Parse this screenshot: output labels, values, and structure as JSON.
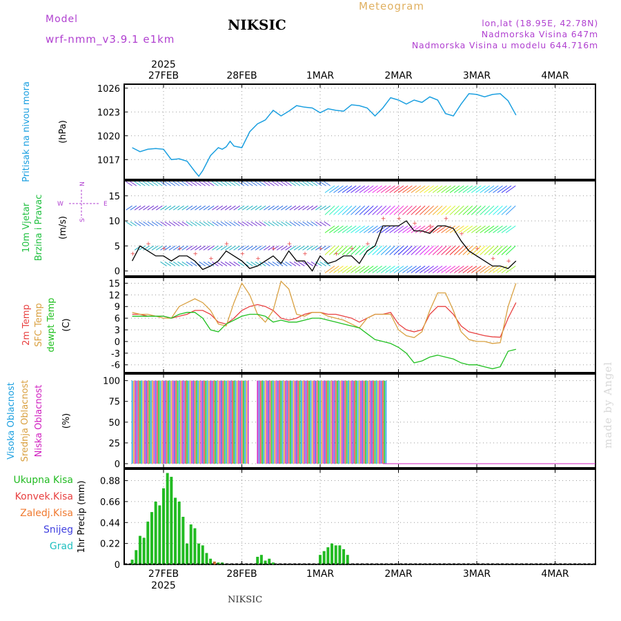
{
  "header": {
    "model_label": "Model",
    "model_name": "wrf-nmm_v3.9.1  e1km",
    "station": "NIKSIC",
    "title": "Meteogram",
    "lonlat": "lon,lat (18.95E, 42.78N)",
    "altitude": "Nadmorska Visina 647m",
    "model_altitude": "Nadmorska Visina u modelu 644.716m"
  },
  "footer": {
    "station": "NIKSIC",
    "credit": "made by Angel"
  },
  "colors": {
    "pressure": "#1a9fe0",
    "temp2m": "#e84040",
    "sfctemp": "#d9a040",
    "dewpt": "#20c020",
    "wind_black": "#000000",
    "precip": "#22bb22",
    "precip_conv": "#e84040",
    "precip_frozen": "#c86a2a",
    "cloud_high": "#1a9fe0",
    "cloud_mid": "#d9a040",
    "cloud_low": "#d020c0",
    "cloud_other": "#5050e0"
  },
  "chart_data": [
    {
      "type": "line",
      "panel": "pressure",
      "ylabel_rotated": "Pritisak na nivou mora",
      "unit": "(hPa)",
      "x_labels_top": [
        "27FEB",
        "28FEB",
        "1MAR",
        "2MAR",
        "3MAR",
        "4MAR"
      ],
      "year_top": "2025",
      "yticks": [
        1017,
        1020,
        1023,
        1026
      ],
      "ylim": [
        1014.5,
        1026.5
      ],
      "series": [
        {
          "x": [
            -0.4,
            -0.3,
            -0.2,
            -0.1,
            0,
            0.1,
            0.2,
            0.3,
            0.4,
            0.45,
            0.5,
            0.6,
            0.7,
            0.75,
            0.8,
            0.85,
            0.9,
            1.0,
            1.1,
            1.2,
            1.3,
            1.4,
            1.5,
            1.6,
            1.7,
            1.8,
            1.9,
            2.0,
            2.1,
            2.2,
            2.3,
            2.4,
            2.5,
            2.6,
            2.7,
            2.8,
            2.9,
            3.0,
            3.1,
            3.2,
            3.3,
            3.4,
            3.5,
            3.6,
            3.7,
            3.8,
            3.9,
            4.0,
            4.1,
            4.2,
            4.3,
            4.4,
            4.5
          ],
          "y": [
            1018.5,
            1018.0,
            1018.3,
            1018.4,
            1018.3,
            1017.0,
            1017.1,
            1016.8,
            1015.5,
            1014.9,
            1015.6,
            1017.5,
            1018.5,
            1018.3,
            1018.6,
            1019.3,
            1018.7,
            1018.5,
            1020.5,
            1021.5,
            1022.0,
            1023.2,
            1022.5,
            1023.1,
            1023.8,
            1023.6,
            1023.5,
            1022.9,
            1023.4,
            1023.2,
            1023.1,
            1023.9,
            1023.8,
            1023.5,
            1022.5,
            1023.5,
            1024.8,
            1024.5,
            1024.0,
            1024.5,
            1024.2,
            1024.9,
            1024.5,
            1022.8,
            1022.5,
            1024.0,
            1025.3,
            1025.2,
            1024.9,
            1025.2,
            1025.3,
            1024.4,
            1022.6
          ]
        }
      ]
    },
    {
      "type": "line",
      "panel": "wind",
      "ylabel_rotated": [
        "10m Vjetar",
        "Brzina i Pravac"
      ],
      "unit": "(m/s)",
      "compass": {
        "n": "N",
        "s": "S",
        "e": "E",
        "w": "W"
      },
      "yticks": [
        0,
        5,
        10,
        15
      ],
      "ylim": [
        -1,
        18
      ],
      "series": [
        {
          "name": "speed",
          "x": [
            -0.4,
            -0.3,
            -0.2,
            -0.1,
            0,
            0.1,
            0.2,
            0.3,
            0.4,
            0.5,
            0.6,
            0.7,
            0.8,
            0.9,
            1.0,
            1.1,
            1.2,
            1.3,
            1.4,
            1.5,
            1.6,
            1.7,
            1.8,
            1.9,
            2.0,
            2.1,
            2.2,
            2.3,
            2.4,
            2.5,
            2.6,
            2.7,
            2.8,
            2.9,
            3.0,
            3.1,
            3.2,
            3.3,
            3.4,
            3.5,
            3.6,
            3.7,
            3.8,
            3.9,
            4.0,
            4.1,
            4.2,
            4.3,
            4.4,
            4.5
          ],
          "y": [
            2,
            5,
            4,
            3,
            3,
            2,
            3,
            3,
            2,
            0.3,
            1,
            2,
            4,
            3,
            2,
            0.5,
            1,
            2,
            3,
            1.5,
            4,
            2,
            2,
            0,
            3,
            1.5,
            2,
            3,
            3,
            1.5,
            4,
            5,
            9,
            9,
            9,
            10,
            8,
            8,
            7.5,
            9,
            9,
            8.5,
            6,
            4,
            3,
            2,
            1,
            1,
            0.5,
            2
          ]
        }
      ]
    },
    {
      "type": "line",
      "panel": "temperature",
      "ylabel_rotated": [
        "2m Temp",
        "SFC Temp",
        "dewpt Temp"
      ],
      "unit": "(C)",
      "yticks": [
        -6,
        -3,
        0,
        3,
        6,
        9,
        12,
        15
      ],
      "ylim": [
        -8,
        16.5
      ],
      "series": [
        {
          "name": "2m Temp",
          "x": [
            -0.4,
            -0.3,
            -0.2,
            -0.1,
            0,
            0.1,
            0.2,
            0.3,
            0.4,
            0.5,
            0.6,
            0.7,
            0.8,
            0.9,
            1.0,
            1.1,
            1.2,
            1.3,
            1.4,
            1.5,
            1.6,
            1.7,
            1.8,
            1.9,
            2.0,
            2.1,
            2.2,
            2.3,
            2.4,
            2.5,
            2.6,
            2.7,
            2.8,
            2.9,
            3.0,
            3.1,
            3.2,
            3.3,
            3.4,
            3.5,
            3.6,
            3.7,
            3.8,
            3.9,
            4.0,
            4.1,
            4.2,
            4.3,
            4.4,
            4.5
          ],
          "y": [
            7,
            7,
            6.5,
            6.5,
            6.5,
            6,
            6.5,
            7,
            8,
            8,
            7,
            5,
            4.5,
            6,
            8,
            9,
            9.5,
            9,
            8,
            6,
            5.5,
            6,
            7,
            7.5,
            7.5,
            7,
            7,
            6.5,
            6,
            5,
            6,
            7,
            7,
            7.5,
            4.5,
            3,
            2.5,
            3,
            7,
            9,
            9,
            7,
            4,
            2.5,
            2,
            1.5,
            1.2,
            1.1,
            6,
            10
          ]
        },
        {
          "name": "SFC Temp",
          "x": [
            -0.4,
            -0.3,
            -0.2,
            -0.1,
            0,
            0.1,
            0.2,
            0.3,
            0.4,
            0.5,
            0.6,
            0.7,
            0.8,
            0.9,
            1.0,
            1.1,
            1.2,
            1.3,
            1.4,
            1.5,
            1.6,
            1.7,
            1.8,
            1.9,
            2.0,
            2.1,
            2.2,
            2.3,
            2.4,
            2.5,
            2.6,
            2.7,
            2.8,
            2.9,
            3.0,
            3.1,
            3.2,
            3.3,
            3.4,
            3.5,
            3.6,
            3.7,
            3.8,
            3.9,
            4.0,
            4.1,
            4.2,
            4.3,
            4.4,
            4.5
          ],
          "y": [
            7.5,
            7,
            7,
            6.5,
            6,
            6,
            9,
            10,
            11,
            10,
            8,
            4.5,
            4,
            10,
            15,
            12,
            7,
            5,
            8,
            15.5,
            13.5,
            7,
            6.5,
            7.5,
            7.5,
            6.5,
            6,
            5.5,
            4.5,
            3.5,
            6,
            7,
            7,
            7,
            3,
            1.5,
            1,
            2.5,
            8,
            12.5,
            12.5,
            8,
            2.5,
            0.5,
            0,
            0,
            -0.5,
            -0.3,
            9,
            15
          ]
        },
        {
          "name": "dewpt Temp",
          "x": [
            -0.4,
            -0.3,
            -0.2,
            -0.1,
            0,
            0.1,
            0.2,
            0.3,
            0.4,
            0.5,
            0.6,
            0.7,
            0.8,
            0.9,
            1.0,
            1.1,
            1.2,
            1.3,
            1.4,
            1.5,
            1.6,
            1.7,
            1.8,
            1.9,
            2.0,
            2.1,
            2.2,
            2.3,
            2.4,
            2.5,
            2.6,
            2.7,
            2.8,
            2.9,
            3.0,
            3.1,
            3.2,
            3.3,
            3.4,
            3.5,
            3.6,
            3.7,
            3.8,
            3.9,
            4.0,
            4.1,
            4.2,
            4.3,
            4.4,
            4.5
          ],
          "y": [
            6.5,
            6.5,
            6.5,
            6.5,
            6.5,
            6,
            7,
            7.5,
            7.5,
            6,
            3,
            2.5,
            4.5,
            5.5,
            6.5,
            7,
            7,
            6.5,
            5,
            5.5,
            5,
            5,
            5.5,
            6,
            6,
            5.5,
            5,
            4.5,
            4,
            3.5,
            2,
            0.5,
            0,
            -0.5,
            -1.5,
            -3,
            -5.5,
            -5,
            -4,
            -3.5,
            -4,
            -4.5,
            -5.5,
            -6,
            -6,
            -6.5,
            -7,
            -6.5,
            -2.5,
            -2
          ]
        }
      ]
    },
    {
      "type": "bar",
      "panel": "cloud",
      "ylabel_rotated": [
        "Visoka Oblacnost",
        "Srednja Oblacnost",
        "Niska Oblacnost"
      ],
      "unit": "(%)",
      "yticks": [
        0,
        25,
        50,
        75,
        100
      ],
      "ylim": [
        -5,
        108
      ],
      "x_range_full_cover": [
        -0.4,
        2.85
      ],
      "value": 100
    },
    {
      "type": "bar",
      "panel": "precip",
      "ylabel_rotated": "1hr Precip (mm)",
      "legend": [
        "Ukupna Kisa",
        "Konvek.Kisa",
        "Zaledj.Kisa",
        "Snijeg",
        "Grad"
      ],
      "yticks": [
        0,
        0.22,
        0.44,
        0.66,
        0.88
      ],
      "ylim": [
        0,
        1.0
      ],
      "x_labels_bottom": [
        "27FEB",
        "28FEB",
        "1MAR",
        "2MAR",
        "3MAR",
        "4MAR"
      ],
      "year_bottom": "2025",
      "x": [
        -0.4,
        -0.35,
        -0.3,
        -0.25,
        -0.2,
        -0.15,
        -0.1,
        -0.05,
        0,
        0.05,
        0.1,
        0.15,
        0.2,
        0.25,
        0.3,
        0.35,
        0.4,
        0.45,
        0.5,
        0.55,
        0.6,
        0.65,
        0.7,
        0.75,
        1.2,
        1.25,
        1.3,
        1.35,
        1.4,
        2.0,
        2.05,
        2.1,
        2.15,
        2.2,
        2.25,
        2.3,
        2.35
      ],
      "values": [
        0.05,
        0.15,
        0.3,
        0.28,
        0.45,
        0.55,
        0.66,
        0.62,
        0.8,
        0.96,
        0.92,
        0.7,
        0.66,
        0.5,
        0.22,
        0.42,
        0.38,
        0.22,
        0.2,
        0.12,
        0.06,
        0.03,
        0.02,
        0.02,
        0.08,
        0.1,
        0.04,
        0.06,
        0.02,
        0.1,
        0.14,
        0.18,
        0.22,
        0.2,
        0.2,
        0.16,
        0.1
      ]
    }
  ]
}
